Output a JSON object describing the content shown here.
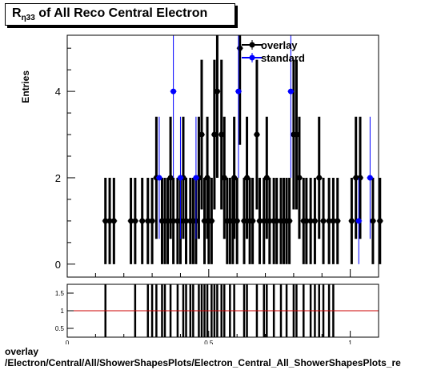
{
  "title": {
    "main": "R",
    "sub": "η33",
    "rest": " of All Reco Central Electron"
  },
  "chart_data": [
    {
      "type": "scatter",
      "ylabel": "Entries",
      "xlim": [
        0,
        1.1
      ],
      "ylim": [
        -0.3,
        5.3
      ],
      "yticks": [
        0,
        2,
        4
      ],
      "legend_position": "top-right",
      "series": [
        {
          "name": "overlay",
          "color": "#000000",
          "x": [
            0.135,
            0.15,
            0.165,
            0.225,
            0.24,
            0.265,
            0.285,
            0.3,
            0.315,
            0.335,
            0.345,
            0.355,
            0.365,
            0.375,
            0.39,
            0.4,
            0.41,
            0.42,
            0.435,
            0.445,
            0.455,
            0.465,
            0.475,
            0.485,
            0.495,
            0.5,
            0.51,
            0.52,
            0.53,
            0.545,
            0.555,
            0.565,
            0.575,
            0.585,
            0.59,
            0.6,
            0.61,
            0.625,
            0.635,
            0.645,
            0.655,
            0.67,
            0.68,
            0.695,
            0.705,
            0.715,
            0.73,
            0.74,
            0.755,
            0.765,
            0.775,
            0.785,
            0.8,
            0.81,
            0.82,
            0.835,
            0.845,
            0.86,
            0.875,
            0.89,
            0.905,
            0.925,
            0.94,
            0.955,
            1.005,
            1.02,
            1.035,
            1.08,
            1.105
          ],
          "y": [
            1,
            1,
            1,
            1,
            1,
            1,
            1,
            1,
            2,
            1,
            1,
            1,
            2,
            1,
            1,
            1,
            2,
            1,
            1,
            1,
            1,
            2,
            3,
            1,
            2,
            1,
            1,
            3,
            4,
            3,
            2,
            1,
            1,
            1,
            2,
            1,
            5,
            1,
            2,
            1,
            1,
            3,
            1,
            1,
            2,
            1,
            1,
            1,
            1,
            1,
            1,
            1,
            3,
            3,
            2,
            1,
            1,
            1,
            1,
            2,
            1,
            1,
            1,
            1,
            1,
            2,
            2,
            1,
            1
          ]
        },
        {
          "name": "standard",
          "color": "#0000ff",
          "x": [
            0.325,
            0.375,
            0.4,
            0.455,
            0.605,
            0.79,
            1.03,
            1.07
          ],
          "y": [
            2,
            4,
            2,
            2,
            4,
            4,
            1,
            2
          ]
        }
      ]
    },
    {
      "type": "bar",
      "xlim": [
        0,
        1.1
      ],
      "ylim": [
        0.25,
        1.75
      ],
      "yticks": [
        0.5,
        1,
        1.5
      ],
      "xticks": [
        0,
        0.5,
        1
      ],
      "reference_line": 1,
      "reference_color": "#cc0000",
      "ratio_x": [
        0.135,
        0.24,
        0.285,
        0.3,
        0.315,
        0.335,
        0.345,
        0.365,
        0.39,
        0.41,
        0.42,
        0.435,
        0.445,
        0.465,
        0.475,
        0.485,
        0.495,
        0.51,
        0.52,
        0.53,
        0.545,
        0.555,
        0.575,
        0.59,
        0.625,
        0.635,
        0.67,
        0.695,
        0.705,
        0.73,
        0.755,
        0.775,
        0.8,
        0.81,
        0.835,
        0.86,
        0.875,
        0.89,
        0.905,
        0.925,
        0.94
      ],
      "xlabel_partial": "R",
      "footer_lines": [
        "overlay",
        "/Electron/Central/All/ShowerShapesPlots/Electron_Central_All_ShowerShapesPlots_re"
      ]
    }
  ]
}
